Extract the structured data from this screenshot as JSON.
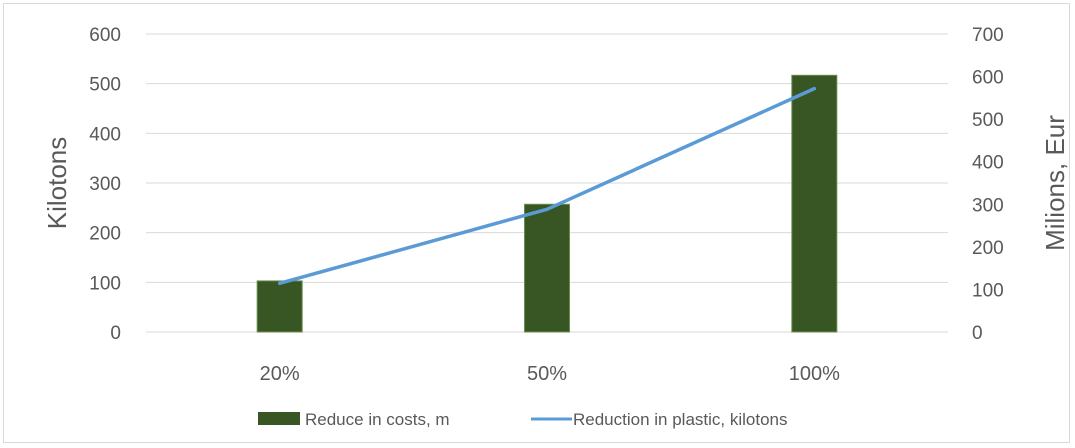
{
  "chart_data": {
    "type": "bar",
    "categories": [
      "20%",
      "50%",
      "100%"
    ],
    "series": [
      {
        "name": "Reduce in costs, m",
        "type": "bar",
        "axis": "right",
        "values": [
          120,
          300,
          603
        ],
        "color": "#375623"
      },
      {
        "name": "Reduction in plastic, kilotons",
        "type": "line",
        "axis": "left",
        "values": [
          98,
          247,
          490
        ],
        "color": "#5b9bd5"
      }
    ],
    "ylabel": "Kilotons",
    "y2label": "Milions, Eur",
    "ylim": [
      0,
      600
    ],
    "y2lim": [
      0,
      700
    ],
    "yticks": [
      "0",
      "100",
      "200",
      "300",
      "400",
      "500",
      "600"
    ],
    "y2ticks": [
      "0",
      "100",
      "200",
      "300",
      "400",
      "500",
      "600",
      "700"
    ],
    "grid": true,
    "legend": "bottom"
  }
}
